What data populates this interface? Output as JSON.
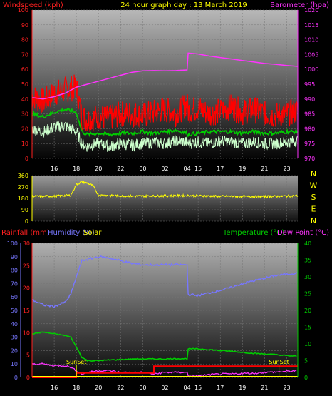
{
  "header": {
    "left_label": "Windspeed (kph)",
    "title": "24 hour graph day : 13 March 2019",
    "right_label": "Barometer (hpa)"
  },
  "bottom_header": {
    "rainfall": "Rainfall (mm)",
    "humidity": "Humidity (%)",
    "solar": "Solar",
    "temperature": "Temperature (°C)",
    "dewpoint": "Dew Point (°C)"
  },
  "compass": [
    "N",
    "W",
    "S",
    "E",
    "N"
  ],
  "sunset_label": "SunSet",
  "colors": {
    "wind_gust": "#ff0000",
    "wind_avg": "#00cc00",
    "wind_speed": "#ccffcc",
    "barometer": "#ff33ff",
    "direction": "#ffff00",
    "humidity": "#7777ff",
    "temperature": "#00cc00",
    "dewpoint": "#ff33ff",
    "rainfall": "#ff0000",
    "solar": "#ffff00"
  },
  "chart_data": [
    {
      "type": "line",
      "name": "wind-barometer",
      "x_ticks": [
        "16",
        "18",
        "20",
        "22",
        "00",
        "02",
        "04",
        "15",
        "17",
        "19",
        "21",
        "23"
      ],
      "y_left_ticks": [
        0,
        10,
        20,
        30,
        40,
        50,
        60,
        70,
        80,
        90,
        100
      ],
      "y_right_ticks": [
        970,
        975,
        980,
        985,
        990,
        995,
        1000,
        1005,
        1010,
        1015,
        1020
      ],
      "ylim_left": [
        0,
        100
      ],
      "ylim_right": [
        970,
        1020
      ],
      "hours": [
        14,
        15,
        16,
        17,
        18,
        18.5,
        19,
        20,
        21,
        22,
        23,
        24,
        25,
        26,
        27,
        28,
        28.1,
        29,
        30,
        31,
        32,
        33,
        34,
        35,
        36,
        37,
        38
      ],
      "gust": [
        42,
        38,
        44,
        46,
        48,
        28,
        26,
        28,
        27,
        30,
        30,
        29,
        31,
        33,
        30,
        37,
        32,
        34,
        30,
        32,
        35,
        31,
        33,
        30,
        29,
        30,
        32
      ],
      "average": [
        30,
        28,
        31,
        33,
        31,
        18,
        16,
        17,
        16,
        17,
        17,
        18,
        17,
        18,
        19,
        17,
        16,
        17,
        18,
        18,
        18,
        17,
        18,
        17,
        17,
        18,
        18
      ],
      "speed": [
        20,
        18,
        21,
        22,
        18,
        10,
        8,
        10,
        8,
        10,
        9,
        10,
        11,
        10,
        12,
        11,
        10,
        11,
        10,
        12,
        11,
        10,
        11,
        10,
        10,
        11,
        12
      ],
      "barometer": [
        990.5,
        990.0,
        990.8,
        992.0,
        994.0,
        994.5,
        995.0,
        996.0,
        997.0,
        998.0,
        999.0,
        999.5,
        999.6,
        999.5,
        999.6,
        999.8,
        1005.5,
        1005.2,
        1004.5,
        1004.0,
        1003.5,
        1003.0,
        1002.5,
        1002.0,
        1001.7,
        1001.3,
        1001.0
      ]
    },
    {
      "type": "line",
      "name": "wind-direction",
      "y_ticks": [
        0,
        90,
        180,
        270,
        360
      ],
      "ylim": [
        0,
        360
      ],
      "hours": [
        14,
        16,
        17.5,
        18,
        18.5,
        19,
        19.5,
        20,
        22,
        24,
        26,
        28,
        30,
        32,
        34,
        36,
        38
      ],
      "direction": [
        195,
        198,
        205,
        290,
        310,
        300,
        280,
        205,
        200,
        198,
        200,
        202,
        198,
        196,
        194,
        196,
        200
      ]
    },
    {
      "type": "line",
      "name": "temperature-humidity",
      "x_ticks": [
        "16",
        "18",
        "20",
        "22",
        "00",
        "02",
        "04",
        "15",
        "17",
        "19",
        "21",
        "23"
      ],
      "y_humidity_ticks": [
        0,
        10,
        20,
        30,
        40,
        50,
        60,
        70,
        80,
        90,
        100
      ],
      "y_rain_ticks": [
        0,
        5,
        10,
        15,
        20,
        25,
        30
      ],
      "y_temp_ticks": [
        0,
        5,
        10,
        15,
        20,
        25,
        30,
        35,
        40
      ],
      "hours": [
        14,
        15,
        16,
        17,
        17.5,
        18,
        18.5,
        19,
        20,
        21,
        22,
        23,
        24,
        25,
        26,
        27,
        28,
        28.1,
        29,
        30,
        31,
        32,
        33,
        34,
        35,
        36,
        37,
        38
      ],
      "humidity": [
        58,
        54,
        53,
        56,
        62,
        75,
        87,
        88,
        90,
        89,
        87,
        85,
        84,
        84,
        84,
        84,
        84,
        62,
        61,
        63,
        65,
        67,
        70,
        72,
        74,
        76,
        77,
        78
      ],
      "temperature": [
        13,
        13.5,
        13,
        12.5,
        12,
        9,
        6,
        5,
        5,
        5.2,
        5.3,
        5.5,
        5.5,
        5.5,
        5.5,
        5.6,
        5.6,
        8.5,
        8.5,
        8.3,
        8,
        7.8,
        7.5,
        7.2,
        7,
        6.8,
        6.5,
        6.3
      ],
      "dewpoint": [
        4,
        4,
        3.5,
        3.5,
        3,
        2,
        1,
        1.5,
        2,
        2,
        1.5,
        1.5,
        1.5,
        1,
        1.5,
        1.5,
        1.5,
        0.5,
        0.5,
        0.8,
        1,
        1,
        1.2,
        1.2,
        1.5,
        1.6,
        1.8,
        2
      ],
      "rainfall": [
        0,
        0,
        0,
        0,
        0,
        1,
        1,
        1,
        1,
        1,
        1,
        1,
        1,
        2.5,
        2.5,
        2.5,
        2.5,
        2.5,
        2.5,
        2.5,
        2.5,
        2.5,
        2.5,
        2.5,
        2.5,
        2.5,
        2.5,
        2.5
      ],
      "sunset_hours": [
        18,
        42
      ]
    }
  ]
}
